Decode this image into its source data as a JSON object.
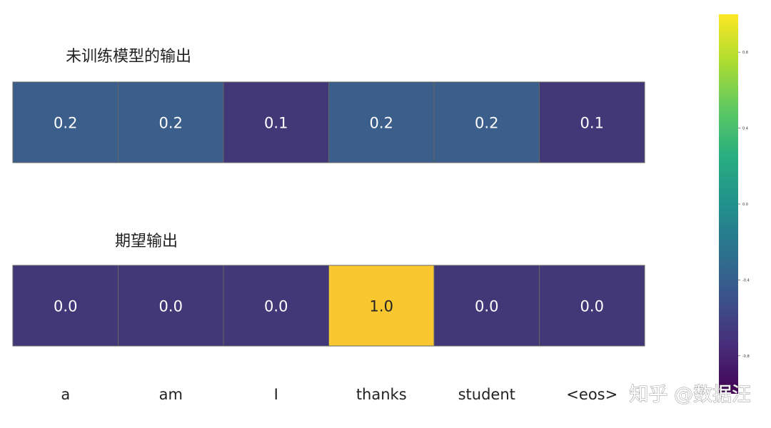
{
  "chart_data": [
    {
      "type": "heatmap",
      "title": "未训练模型的输出",
      "categories": [
        "a",
        "am",
        "I",
        "thanks",
        "student",
        "<eos>"
      ],
      "values": [
        0.2,
        0.2,
        0.1,
        0.2,
        0.2,
        0.1
      ],
      "value_labels": [
        "0.2",
        "0.2",
        "0.1",
        "0.2",
        "0.2",
        "0.1"
      ],
      "colors": [
        "#3c5e8a",
        "#3c5e8a",
        "#433877",
        "#3c5e8a",
        "#3c5e8a",
        "#433877"
      ]
    },
    {
      "type": "heatmap",
      "title": "期望输出",
      "categories": [
        "a",
        "am",
        "I",
        "thanks",
        "student",
        "<eos>"
      ],
      "values": [
        0.0,
        0.0,
        0.0,
        1.0,
        0.0,
        0.0
      ],
      "value_labels": [
        "0.0",
        "0.0",
        "0.0",
        "1.0",
        "0.0",
        "0.0"
      ],
      "colors": [
        "#433877",
        "#433877",
        "#433877",
        "#f9c72f",
        "#433877",
        "#433877"
      ]
    }
  ],
  "colorbar": {
    "ticks": [
      "0.8",
      "0.4",
      "0.0",
      "-0.4",
      "-0.8"
    ],
    "colormap": "viridis",
    "range": [
      -1.0,
      1.0
    ]
  },
  "x_tick_labels": [
    "a",
    "am",
    "I",
    "thanks",
    "student",
    "<eos>"
  ],
  "watermark": "知乎 @数据汪",
  "colors": {
    "cell_border": "#666666",
    "text_on_dark": "#ffffff",
    "text_on_light": "#222222"
  }
}
